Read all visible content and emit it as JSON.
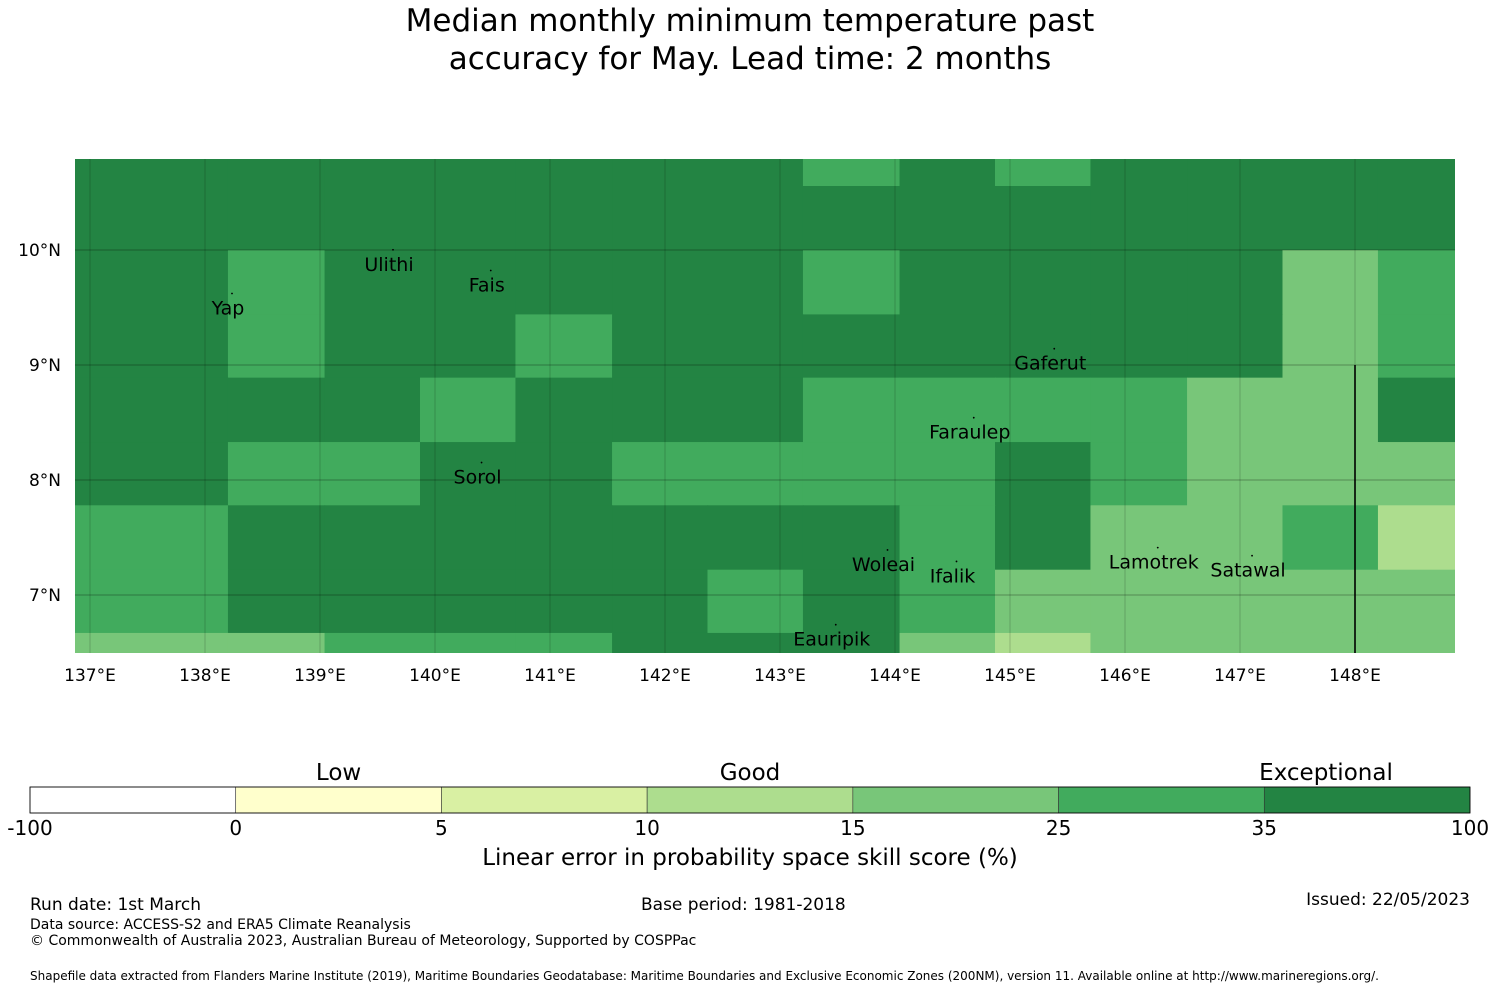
{
  "title_lines": [
    "Median monthly minimum temperature past",
    "accuracy for May. Lead time: 2 months"
  ],
  "map": {
    "lon_range": [
      137.0,
      149.0
    ],
    "lat_range": [
      6.5,
      10.8
    ],
    "lon_ticks": [
      {
        "value": 137,
        "label": "137°E"
      },
      {
        "value": 138,
        "label": "138°E"
      },
      {
        "value": 139,
        "label": "139°E"
      },
      {
        "value": 140,
        "label": "140°E"
      },
      {
        "value": 141,
        "label": "141°E"
      },
      {
        "value": 142,
        "label": "142°E"
      },
      {
        "value": 143,
        "label": "143°E"
      },
      {
        "value": 144,
        "label": "144°E"
      },
      {
        "value": 145,
        "label": "145°E"
      },
      {
        "value": 146,
        "label": "146°E"
      },
      {
        "value": 147,
        "label": "147°E"
      },
      {
        "value": 148,
        "label": "148°E"
      }
    ],
    "lat_ticks": [
      {
        "value": 10,
        "label": "10°N"
      },
      {
        "value": 9,
        "label": "9°N"
      },
      {
        "value": 8,
        "label": "8°N"
      },
      {
        "value": 7,
        "label": "7°N"
      }
    ],
    "col_edges": [
      137.0,
      138.33,
      139.17,
      140.0,
      140.83,
      141.67,
      142.5,
      143.33,
      144.17,
      145.0,
      145.83,
      146.67,
      147.5,
      148.33,
      149.0
    ],
    "row_edges": [
      10.8,
      10.0,
      9.44,
      8.89,
      8.33,
      7.78,
      7.22,
      6.67,
      6.5
    ],
    "cell_classes": [
      [
        6,
        6,
        6,
        6,
        6,
        6,
        6,
        6,
        6,
        6,
        6,
        6,
        6,
        6
      ],
      [
        6,
        5,
        6,
        6,
        6,
        6,
        6,
        5,
        6,
        6,
        6,
        6,
        4,
        5
      ],
      [
        6,
        5,
        6,
        6,
        5,
        6,
        6,
        6,
        6,
        6,
        6,
        6,
        4,
        5
      ],
      [
        6,
        6,
        6,
        5,
        6,
        6,
        6,
        5,
        5,
        5,
        5,
        4,
        4,
        6
      ],
      [
        6,
        5,
        5,
        6,
        6,
        5,
        5,
        5,
        5,
        6,
        5,
        4,
        4,
        4
      ],
      [
        5,
        6,
        6,
        6,
        6,
        6,
        6,
        6,
        5,
        6,
        4,
        4,
        5,
        3
      ],
      [
        5,
        6,
        6,
        6,
        6,
        6,
        5,
        6,
        5,
        4,
        4,
        4,
        4,
        4
      ],
      [
        4,
        4,
        5,
        5,
        5,
        6,
        6,
        6,
        4,
        3,
        4,
        4,
        4,
        4
      ]
    ],
    "top_row_overrides": [
      {
        "lon0": 143.33,
        "lon1": 144.17,
        "lat0": 10.8,
        "lat1": 10.55,
        "class": 5
      },
      {
        "lon0": 145.0,
        "lon1": 145.83,
        "lat0": 10.8,
        "lat1": 10.55,
        "class": 5
      }
    ],
    "boundary_line": {
      "lon": 148.0,
      "lat0": 9.0,
      "lat1": 6.5
    },
    "places": [
      {
        "name": "Yap",
        "lon": 138.2,
        "lat": 9.5
      },
      {
        "name": "Ulithi",
        "lon": 139.6,
        "lat": 9.88
      },
      {
        "name": "Fais",
        "lon": 140.45,
        "lat": 9.7
      },
      {
        "name": "Gaferut",
        "lon": 145.35,
        "lat": 9.02
      },
      {
        "name": "Faraulep",
        "lon": 144.65,
        "lat": 8.42
      },
      {
        "name": "Sorol",
        "lon": 140.37,
        "lat": 8.03
      },
      {
        "name": "Woleai",
        "lon": 143.9,
        "lat": 7.27
      },
      {
        "name": "Ifalik",
        "lon": 144.5,
        "lat": 7.17
      },
      {
        "name": "Lamotrek",
        "lon": 146.25,
        "lat": 7.29
      },
      {
        "name": "Satawal",
        "lon": 147.07,
        "lat": 7.22
      },
      {
        "name": "Eauripik",
        "lon": 143.45,
        "lat": 6.62
      }
    ]
  },
  "colorbar": {
    "colors": [
      "#ffffff",
      "#ffffcc",
      "#d9f0a3",
      "#addd8e",
      "#78c679",
      "#41ab5d",
      "#238443"
    ],
    "tick_labels": [
      "-100",
      "0",
      "5",
      "10",
      "15",
      "25",
      "35",
      "100"
    ],
    "categories": [
      {
        "label": "Low",
        "position": 1.5
      },
      {
        "label": "Good",
        "position": 3.5
      },
      {
        "label": "Exceptional",
        "position": 6.3
      }
    ],
    "label": "Linear error in probability space skill score (%)"
  },
  "footer": {
    "run_date": "Run date: 1st March",
    "base_period": "Base period: 1981-2018",
    "issued": "Issued: 22/05/2023",
    "data_source": "Data source: ACCESS-S2 and ERA5 Climate Reanalysis",
    "copyright": "© Commonwealth of Australia 2023, Australian Bureau of Meteorology, Supported by COSPPac",
    "shapefile": "Shapefile data extracted from Flanders Marine Institute (2019), Maritime Boundaries Geodatabase: Maritime Boundaries and Exclusive Economic Zones (200NM), version 11. Available online at http://www.marineregions.org/."
  }
}
